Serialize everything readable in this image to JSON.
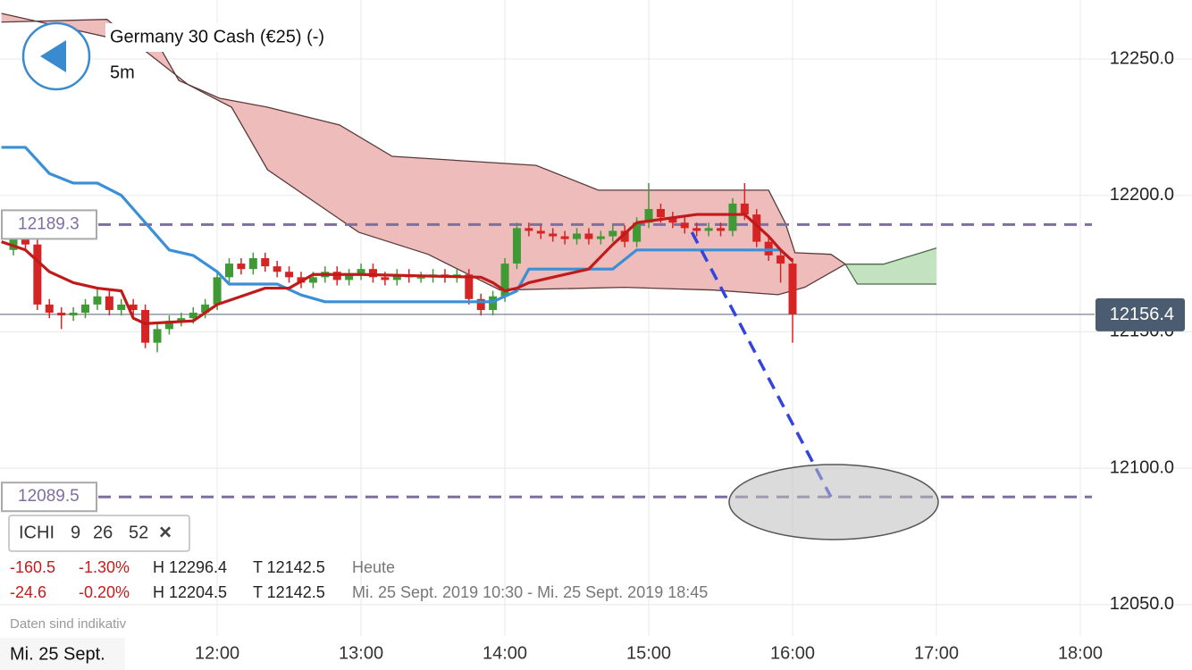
{
  "header": {
    "title": "Germany 30 Cash (€25) (-)",
    "interval": "5m"
  },
  "indicator": {
    "name": "ICHI",
    "params": [
      9,
      26,
      52
    ]
  },
  "stats": [
    {
      "change": "-160.5",
      "change_pct": "-1.30%",
      "high": "H 12296.4",
      "low": "T 12142.5",
      "period": "Heute"
    },
    {
      "change": "-24.6",
      "change_pct": "-0.20%",
      "high": "H 12204.5",
      "low": "T 12142.5",
      "period": "Mi. 25 Sept. 2019 10:30 - Mi. 25 Sept. 2019 18:45"
    }
  ],
  "disclaimer": "Daten sind indikativ",
  "date": "Mi. 25 Sept.",
  "chart_data": {
    "type": "candlestick",
    "xlim": [
      629.4,
      1126.6
    ],
    "ylim": [
      12038.5,
      12271.6
    ],
    "xticks": [
      {
        "value": 720,
        "label": "12:00"
      },
      {
        "value": 780,
        "label": "13:00"
      },
      {
        "value": 840,
        "label": "14:00"
      },
      {
        "value": 900,
        "label": "15:00"
      },
      {
        "value": 960,
        "label": "16:00"
      },
      {
        "value": 1020,
        "label": "17:00"
      },
      {
        "value": 1080,
        "label": "18:00"
      }
    ],
    "yticks": [
      {
        "value": 12050,
        "label": "12050.0"
      },
      {
        "value": 12100,
        "label": "12100.0"
      },
      {
        "value": 12150,
        "label": "12150.0"
      },
      {
        "value": 12200,
        "label": "12200.0"
      },
      {
        "value": 12250,
        "label": "12250.0"
      }
    ],
    "grid": true,
    "up_color": "#3f9a35",
    "down_color": "#d62323",
    "x": [
      635,
      640,
      645,
      650,
      655,
      660,
      665,
      670,
      675,
      680,
      685,
      690,
      695,
      700,
      705,
      710,
      715,
      720,
      725,
      730,
      735,
      740,
      745,
      750,
      755,
      760,
      765,
      770,
      775,
      780,
      785,
      790,
      795,
      800,
      805,
      810,
      815,
      820,
      825,
      830,
      835,
      840,
      845,
      850,
      855,
      860,
      865,
      870,
      875,
      880,
      885,
      890,
      895,
      900,
      905,
      910,
      915,
      920,
      925,
      930,
      935,
      940,
      945,
      950,
      955,
      960
    ],
    "open": [
      12180,
      12184,
      12182,
      12160,
      12157,
      12156,
      12157,
      12160,
      12163,
      12158,
      12160,
      12158,
      12146,
      12151,
      12154,
      12155,
      12157,
      12160,
      12170,
      12175,
      12173,
      12177,
      12174,
      12172,
      12170,
      12168,
      12170,
      12172,
      12169,
      12171,
      12173,
      12170,
      12169,
      12171,
      12170,
      12170,
      12171,
      12170,
      12171,
      12162,
      12158,
      12163,
      12175,
      12188,
      12187,
      12186,
      12185,
      12184,
      12186,
      12184,
      12185,
      12187,
      12183,
      12190,
      12195,
      12192,
      12190,
      12188,
      12187,
      12188,
      12187,
      12197,
      12193,
      12183,
      12178,
      12175
    ],
    "high": [
      12186,
      12186,
      12184,
      12162,
      12159,
      12159,
      12162,
      12166,
      12165,
      12162,
      12162,
      12160,
      12153,
      12156,
      12157,
      12159,
      12162,
      12172,
      12177,
      12177,
      12179,
      12179,
      12176,
      12174,
      12172,
      12172,
      12174,
      12174,
      12173,
      12175,
      12175,
      12172,
      12173,
      12173,
      12172,
      12173,
      12173,
      12173,
      12173,
      12164,
      12165,
      12177,
      12190,
      12190,
      12189,
      12188,
      12187,
      12188,
      12188,
      12187,
      12189,
      12189,
      12192,
      12204.5,
      12197,
      12194,
      12192,
      12190,
      12190,
      12190,
      12199,
      12204.5,
      12195,
      12185,
      12180,
      12177
    ],
    "low": [
      12178,
      12180,
      12158,
      12155,
      12151,
      12154,
      12155,
      12158,
      12156,
      12156,
      12156,
      12144,
      12142.5,
      12149,
      12152,
      12153,
      12155,
      12158,
      12168,
      12171,
      12171,
      12172,
      12170,
      12168,
      12166,
      12166,
      12168,
      12167,
      12167,
      12169,
      12168,
      12167,
      12167,
      12168,
      12168,
      12168,
      12168,
      12168,
      12160,
      12156,
      12156,
      12161,
      12173,
      12185,
      12184,
      12183,
      12182,
      12182,
      12182,
      12182,
      12183,
      12181,
      12181,
      12188,
      12190,
      12188,
      12186,
      12185,
      12185,
      12185,
      12185,
      12191,
      12181,
      12176,
      12168,
      12146
    ],
    "close": [
      12184,
      12182,
      12160,
      12157,
      12156,
      12157,
      12160,
      12163,
      12158,
      12160,
      12158,
      12146,
      12151,
      12154,
      12155,
      12157,
      12160,
      12170,
      12175,
      12173,
      12177,
      12174,
      12172,
      12170,
      12168,
      12170,
      12172,
      12169,
      12171,
      12173,
      12170,
      12169,
      12171,
      12170,
      12170,
      12171,
      12170,
      12171,
      12162,
      12158,
      12163,
      12175,
      12188,
      12187,
      12186,
      12185,
      12184,
      12186,
      12184,
      12185,
      12187,
      12183,
      12190,
      12195,
      12192,
      12190,
      12188,
      12187,
      12188,
      12187,
      12197,
      12193,
      12183,
      12178,
      12175,
      12156.4
    ],
    "cloud": [
      {
        "color": "#efbcbc",
        "edge": "#5a3a3a",
        "top": {
          "x": [
            630,
            696.5,
            704,
            721,
            741,
            771,
            793,
            853,
            879,
            950,
            957,
            961,
            976,
            982
          ],
          "y": [
            12266.7,
            12253.6,
            12242.1,
            12235.6,
            12232.3,
            12225.8,
            12214.3,
            12211,
            12201.9,
            12201.9,
            12189.8,
            12179,
            12178.4,
            12174.8
          ]
        },
        "bottom": {
          "x": [
            630,
            674,
            689,
            708,
            726,
            741,
            779,
            808,
            823,
            838,
            890,
            927,
            954,
            965,
            982
          ],
          "y": [
            12263.5,
            12264.5,
            12253.6,
            12240.5,
            12232.3,
            12209.4,
            12186.5,
            12178.4,
            12171.8,
            12165.3,
            12166.3,
            12165.3,
            12163.6,
            12166.3,
            12174.8
          ]
        }
      },
      {
        "color": "#c3e3c0",
        "edge": "#4a6a4a",
        "top": {
          "x": [
            982,
            998,
            1020
          ],
          "y": [
            12174.8,
            12174.8,
            12180.7
          ]
        },
        "bottom": {
          "x": [
            982,
            987,
            1020
          ],
          "y": [
            12174.8,
            12167.5,
            12167.5
          ]
        }
      }
    ],
    "lines": [
      {
        "color": "#3a8fd6",
        "x": [
          630,
          640,
          650,
          660,
          670,
          680,
          690,
          700,
          710,
          720,
          725,
          745,
          755,
          765,
          835,
          840,
          845,
          850,
          885,
          895,
          955,
          960
        ],
        "y": [
          12217.6,
          12217.6,
          12208,
          12204.5,
          12204.5,
          12200,
          12190,
          12180,
          12178,
          12172,
          12167.5,
          12167.5,
          12163.5,
          12161,
          12161,
          12163,
          12165,
          12173,
          12173,
          12180,
          12180,
          12176
        ]
      },
      {
        "color": "#c01a1a",
        "x": [
          630,
          640,
          650,
          660,
          670,
          680,
          685,
          690,
          710,
          720,
          730,
          740,
          750,
          760,
          780,
          830,
          835,
          840,
          845,
          850,
          875,
          885,
          895,
          920,
          940,
          950,
          955,
          960
        ],
        "y": [
          12183,
          12180,
          12172,
          12168,
          12166,
          12165,
          12155,
          12153,
          12154,
          12160,
          12163,
          12166,
          12166,
          12171,
          12171,
          12170,
          12168,
          12165,
          12166,
          12168,
          12173,
          12182,
          12190,
          12193,
          12193,
          12185,
          12180,
          12176
        ]
      }
    ],
    "levels": [
      12189.3,
      12089.5
    ],
    "last": 12156.4,
    "trendline": {
      "color": "#3344dd",
      "x": [
        918,
        976
      ],
      "y": [
        12186.5,
        12089.5
      ]
    }
  }
}
